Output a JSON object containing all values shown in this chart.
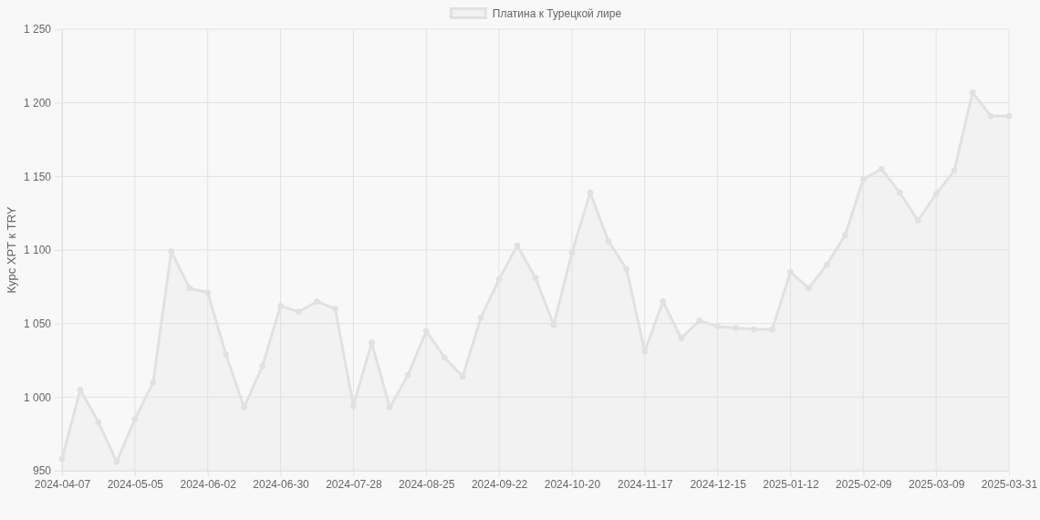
{
  "chart_data": {
    "type": "area",
    "ylabel": "Курс XPT к TRY",
    "categories": [
      "2024-04-07",
      null,
      null,
      null,
      "2024-05-05",
      null,
      null,
      null,
      "2024-06-02",
      null,
      null,
      null,
      "2024-06-30",
      null,
      null,
      null,
      "2024-07-28",
      null,
      null,
      null,
      "2024-08-25",
      null,
      null,
      null,
      "2024-09-22",
      null,
      null,
      null,
      "2024-10-20",
      null,
      null,
      null,
      "2024-11-17",
      null,
      null,
      null,
      "2024-12-15",
      null,
      null,
      null,
      "2025-01-12",
      null,
      null,
      null,
      "2025-02-09",
      null,
      null,
      null,
      "2025-03-09",
      null,
      null,
      null,
      "2025-03-31"
    ],
    "series": [
      {
        "name": "Платина к Турецкой лире",
        "color": "#e4e0e0",
        "values": [
          958,
          1005,
          983,
          956,
          985,
          1010,
          1099,
          1074,
          1071,
          1029,
          993,
          1021,
          1062,
          1058,
          1065,
          1060,
          994,
          1037,
          993,
          1015,
          1045,
          1027,
          1014,
          1054,
          1080,
          1103,
          1081,
          1049,
          1098,
          1139,
          1106,
          1087,
          1031,
          1065,
          1040,
          1052,
          1048,
          1047,
          1046,
          1046,
          1085,
          1074,
          1090,
          1110,
          1148,
          1155,
          1139,
          1120,
          1138,
          1154,
          1207,
          1191,
          1191
        ]
      }
    ],
    "ylim": [
      950,
      1250
    ],
    "yticks": [
      950,
      {
        "value": 1000,
        "label": "1 000"
      },
      {
        "value": 1050,
        "label": "1 050"
      },
      {
        "value": 1100,
        "label": "1 100"
      },
      {
        "value": 1150,
        "label": "1 150"
      },
      {
        "value": 1200,
        "label": "1 200"
      },
      {
        "value": 1250,
        "label": "1 250"
      }
    ],
    "grid": true,
    "legend": "top",
    "marker": "circle",
    "line_style": "solid"
  }
}
